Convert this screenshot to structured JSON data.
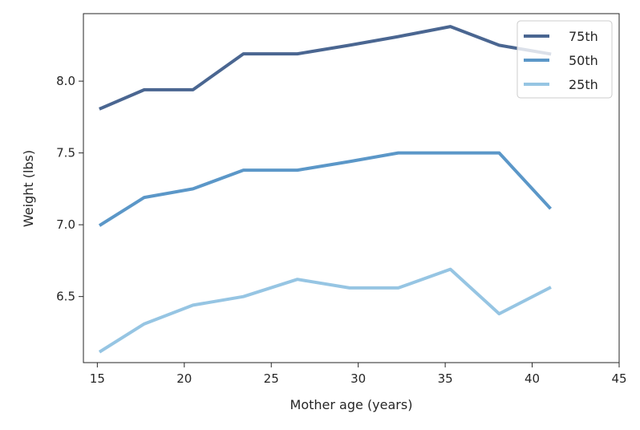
{
  "chart_data": {
    "type": "line",
    "title": "",
    "xlabel": "Mother age (years)",
    "ylabel": "Weight (lbs)",
    "xlim": [
      14.2,
      45
    ],
    "ylim": [
      6.04,
      8.47
    ],
    "x_ticks": [
      15,
      20,
      25,
      30,
      35,
      40,
      45
    ],
    "y_ticks": [
      6.5,
      7.0,
      7.5,
      8.0
    ],
    "x_tick_labels": [
      "15",
      "20",
      "25",
      "30",
      "35",
      "40",
      "45"
    ],
    "y_tick_labels": [
      "6.5",
      "7.0",
      "7.5",
      "8.0"
    ],
    "grid": false,
    "legend_position": "top-right",
    "x": [
      15.2,
      17.7,
      20.5,
      23.4,
      26.5,
      29.5,
      32.3,
      35.3,
      38.1,
      41.0
    ],
    "series": [
      {
        "name": "75th",
        "color": "#4a6691",
        "values": [
          7.81,
          7.94,
          7.94,
          8.19,
          8.19,
          8.25,
          8.31,
          8.38,
          8.25,
          8.19
        ]
      },
      {
        "name": "50th",
        "color": "#5b97c8",
        "values": [
          7.0,
          7.19,
          7.25,
          7.38,
          7.38,
          7.44,
          7.5,
          7.5,
          7.5,
          7.12
        ]
      },
      {
        "name": "25th",
        "color": "#96c5e3",
        "values": [
          6.12,
          6.31,
          6.44,
          6.5,
          6.62,
          6.56,
          6.56,
          6.69,
          6.38,
          6.56
        ]
      }
    ]
  }
}
